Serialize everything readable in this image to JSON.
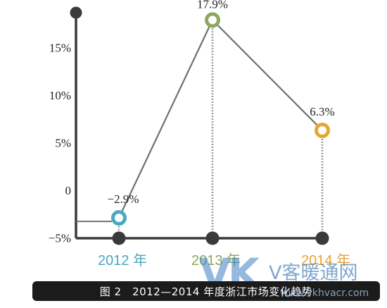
{
  "chart_data": {
    "type": "line",
    "categories": [
      "2012 年",
      "2013 年",
      "2014 年"
    ],
    "values": [
      -2.9,
      17.9,
      6.3
    ],
    "value_labels": [
      "−2.9%",
      "17.9%",
      "6.3%"
    ],
    "y_ticks": [
      {
        "value": 15,
        "label": "15%"
      },
      {
        "value": 10,
        "label": "10%"
      },
      {
        "value": 5,
        "label": "5%"
      },
      {
        "value": 0,
        "label": "0"
      },
      {
        "value": -5,
        "label": "−5%"
      }
    ],
    "ylim": [
      -5,
      20
    ],
    "grid": false,
    "point_colors": [
      "#4aa8bf",
      "#8aa860",
      "#e6a535"
    ],
    "line_color": "#707070",
    "axis_color": "#3a3a3a"
  },
  "caption": "图 2　2012—2014 年度浙江市场变化趋势",
  "watermark": {
    "logo": "VK",
    "name": "V客暖通网",
    "url": "www.vkhvacr.com"
  }
}
